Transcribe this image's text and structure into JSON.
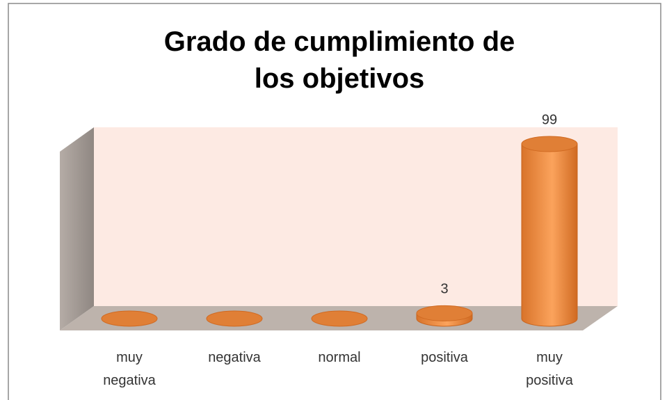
{
  "chart_data": {
    "type": "bar3d",
    "title": "Grado de cumplimiento de los objetivos",
    "categories": [
      "muy negativa",
      "negativa",
      "normal",
      "positiva",
      "muy positiva"
    ],
    "values": [
      0,
      0,
      0,
      3,
      99
    ],
    "color": "#f79646"
  }
}
